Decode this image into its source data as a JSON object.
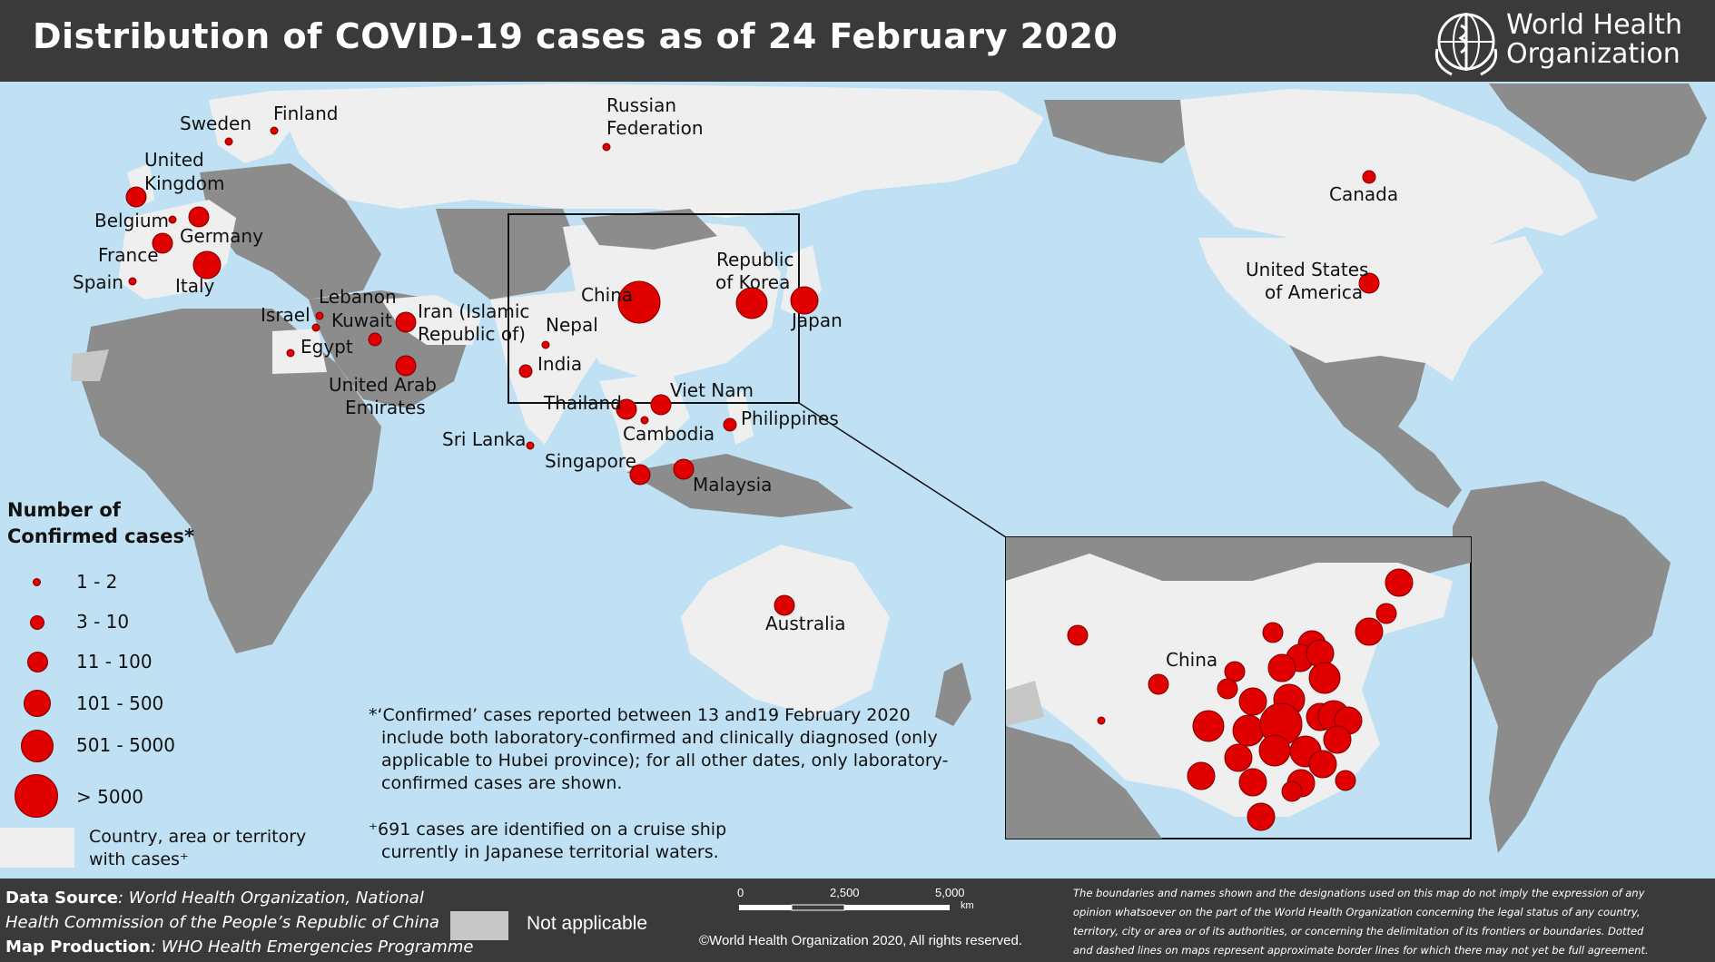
{
  "header": {
    "title": "Distribution of COVID-19 cases as of 24 February 2020",
    "logo_line1": "World Health",
    "logo_line2": "Organization"
  },
  "map": {
    "colors": {
      "water": "#bfe1f3",
      "with_cases": "#efefef",
      "no_cases": "#8c8c8c",
      "not_applicable": "#c7c7c7",
      "marker": "#e00000"
    },
    "labels": {
      "sweden": "Sweden",
      "finland": "Finland",
      "russia_1": "Russian",
      "russia_2": "Federation",
      "uk_1": "United",
      "uk_2": "Kingdom",
      "belgium": "Belgium",
      "germany": "Germany",
      "france": "France",
      "spain": "Spain",
      "italy": "Italy",
      "lebanon": "Lebanon",
      "israel": "Israel",
      "kuwait": "Kuwait",
      "iran_1": "Iran (Islamic",
      "iran_2": "Republic of)",
      "egypt": "Egypt",
      "uae_1": "United Arab",
      "uae_2": "Emirates",
      "nepal": "Nepal",
      "india": "India",
      "china": "China",
      "korea_1": "Republic",
      "korea_2": "of Korea",
      "japan": "Japan",
      "vietnam": "Viet Nam",
      "thailand": "Thailand",
      "cambodia": "Cambodia",
      "philippines": "Philippines",
      "srilanka": "Sri Lanka",
      "singapore": "Singapore",
      "malaysia": "Malaysia",
      "australia": "Australia",
      "canada": "Canada",
      "usa_1": "United States",
      "usa_2": "of America",
      "inset_china": "China"
    }
  },
  "legend": {
    "title_1": "Number of",
    "title_2": "Confirmed cases*",
    "classes": [
      "1 - 2",
      "3 - 10",
      "11 - 100",
      "101 - 500",
      "501 - 5000",
      "> 5000"
    ],
    "with_cases_1": "Country, area or territory",
    "with_cases_2": "with cases⁺"
  },
  "notes": {
    "n1_l1": "*‘Confirmed’ cases reported between 13 and19 February 2020",
    "n1_l2": "include both laboratory-confirmed and clinically diagnosed (only",
    "n1_l3": "applicable to Hubei province); for all other dates, only laboratory-",
    "n1_l4": "confirmed cases are shown.",
    "n2_l1": "⁺691 cases are identified on a cruise ship",
    "n2_l2": "currently in Japanese territorial waters."
  },
  "footer": {
    "source_label": "Data Source",
    "source_1": ": World Health Organization, National",
    "source_2": "Health Commission of the People’s Republic of China",
    "production_label": "Map Production",
    "production": ": WHO Health Emergencies Programme",
    "not_applicable": "Not applicable",
    "scale_0": "0",
    "scale_1": "2,500",
    "scale_2": "5,000",
    "scale_unit": "km",
    "copyright": "©World Health Organization 2020, All rights reserved.",
    "disclaimer_1": "The boundaries and names shown and the designations used on this map do not imply the expression of any",
    "disclaimer_2": "opinion whatsoever on the part of the World Health Organization concerning the legal status of any country,",
    "disclaimer_3": "territory, city or area or of its authorities, or concerning the delimitation of its frontiers or boundaries. Dotted",
    "disclaimer_4": "and dashed lines on maps represent approximate border lines for which there may not yet be full agreement."
  }
}
